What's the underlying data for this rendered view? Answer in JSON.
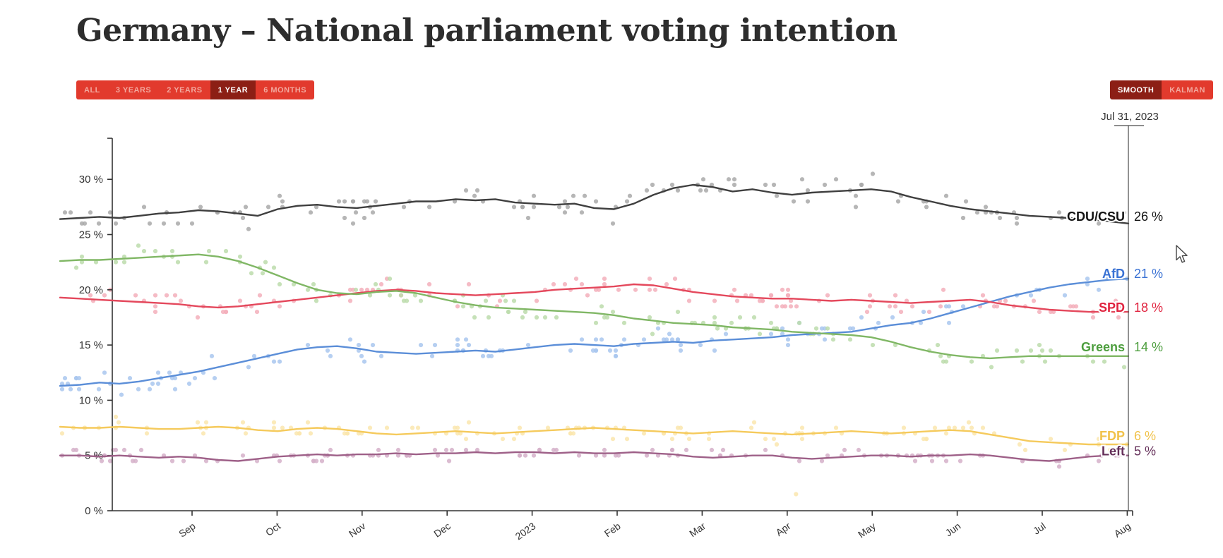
{
  "page": {
    "title": "Germany – National parliament voting intention"
  },
  "toolbar": {
    "range_buttons": [
      {
        "label": "ALL",
        "active": false
      },
      {
        "label": "3 YEARS",
        "active": false
      },
      {
        "label": "2 YEARS",
        "active": false
      },
      {
        "label": "1 YEAR",
        "active": true
      },
      {
        "label": "6 MONTHS",
        "active": false
      }
    ],
    "mode_buttons": [
      {
        "label": "SMOOTH",
        "active": true
      },
      {
        "label": "KALMAN",
        "active": false
      }
    ],
    "colors": {
      "button_bg": "#e23a2d",
      "button_bg_active": "#8c1f15",
      "label": "#f2a89e",
      "label_active": "#ffffff"
    }
  },
  "chart_data": {
    "type": "line",
    "title": "Germany – National parliament voting intention",
    "cursor_date_label": "Jul 31, 2023",
    "x_start": "mid-Jul 2022",
    "x_end": "Jul 31, 2023",
    "x_resolution": "weekly",
    "xtick_labels": [
      "Sep",
      "Oct",
      "Nov",
      "Dec",
      "2023",
      "Feb",
      "Mar",
      "Apr",
      "May",
      "Jun",
      "Jul",
      "Aug"
    ],
    "yticks": [
      0,
      5,
      10,
      15,
      20,
      25,
      30
    ],
    "ytick_labels": [
      "0 %",
      "5 %",
      "10 %",
      "15 %",
      "20 %",
      "25 %",
      "30 %"
    ],
    "ylim": [
      0,
      33.5
    ],
    "grid": false,
    "legend_position": "right-end-labels",
    "axis_color": "#333333",
    "series": [
      {
        "name": "CDU/CSU",
        "end_value": "26 %",
        "final": 26,
        "line_color": "#3f3f3f",
        "dot_color": "#a9a9a9",
        "label_color": "#141414",
        "label_dy": -10,
        "jitter": 1.5,
        "values": [
          26.4,
          26.5,
          26.6,
          26.5,
          26.7,
          26.9,
          27.0,
          27.2,
          27.1,
          26.9,
          26.7,
          27.3,
          27.6,
          27.7,
          27.5,
          27.4,
          27.6,
          27.8,
          28.0,
          28.0,
          28.2,
          28.1,
          28.2,
          27.9,
          27.8,
          27.7,
          27.8,
          27.4,
          27.3,
          27.8,
          28.6,
          29.2,
          29.5,
          29.3,
          28.9,
          29.1,
          28.8,
          28.6,
          28.8,
          28.9,
          29.0,
          29.1,
          28.9,
          28.4,
          28.0,
          27.6,
          27.3,
          27.1,
          26.9,
          26.7,
          26.6,
          26.5,
          26.4,
          26.2,
          26.0
        ]
      },
      {
        "name": "AfD",
        "end_value": "21 %",
        "final": 21,
        "line_color": "#5b8ed8",
        "dot_color": "#a9c7ef",
        "label_color": "#3a72d4",
        "label_dy": -7,
        "jitter": 1.3,
        "values": [
          11.3,
          11.4,
          11.6,
          11.5,
          11.7,
          12.0,
          12.3,
          12.6,
          13.0,
          13.4,
          13.8,
          14.2,
          14.6,
          14.8,
          14.9,
          14.7,
          14.4,
          14.3,
          14.2,
          14.3,
          14.4,
          14.5,
          14.4,
          14.6,
          14.8,
          15.0,
          15.1,
          15.0,
          14.9,
          15.1,
          15.2,
          15.3,
          15.2,
          15.4,
          15.5,
          15.6,
          15.7,
          15.9,
          16.0,
          16.1,
          16.2,
          16.5,
          16.8,
          17.0,
          17.4,
          17.9,
          18.4,
          18.9,
          19.4,
          19.8,
          20.2,
          20.5,
          20.7,
          20.9,
          21.0
        ]
      },
      {
        "name": "SPD",
        "end_value": "18 %",
        "final": 18,
        "line_color": "#e4485c",
        "dot_color": "#f3afbb",
        "label_color": "#e0233f",
        "label_dy": -6,
        "jitter": 1.2,
        "values": [
          19.3,
          19.2,
          19.1,
          19.0,
          18.9,
          18.8,
          18.7,
          18.5,
          18.4,
          18.5,
          18.7,
          18.9,
          19.1,
          19.3,
          19.5,
          19.7,
          19.9,
          20.0,
          19.9,
          19.7,
          19.6,
          19.5,
          19.6,
          19.7,
          19.8,
          20.0,
          20.1,
          20.2,
          20.3,
          20.5,
          20.4,
          20.1,
          19.8,
          19.6,
          19.4,
          19.3,
          19.2,
          19.2,
          19.1,
          19.0,
          19.1,
          19.0,
          18.9,
          18.8,
          18.9,
          19.0,
          19.1,
          18.9,
          18.6,
          18.4,
          18.2,
          18.1,
          18.0,
          18.0,
          18.0
        ]
      },
      {
        "name": "Greens",
        "end_value": "14 %",
        "final": 14,
        "line_color": "#80b765",
        "dot_color": "#bcdcab",
        "label_color": "#4d9e3e",
        "label_dy": -13,
        "jitter": 1.3,
        "values": [
          22.6,
          22.7,
          22.7,
          22.8,
          22.9,
          23.0,
          23.1,
          23.2,
          23.0,
          22.6,
          22.0,
          21.3,
          20.6,
          20.0,
          19.7,
          19.6,
          19.8,
          19.9,
          19.7,
          19.3,
          18.9,
          18.6,
          18.4,
          18.3,
          18.2,
          18.1,
          18.0,
          17.9,
          17.7,
          17.4,
          17.2,
          17.0,
          16.9,
          16.8,
          16.6,
          16.5,
          16.4,
          16.2,
          16.1,
          16.0,
          15.9,
          15.7,
          15.3,
          14.8,
          14.4,
          14.1,
          13.9,
          13.8,
          13.9,
          14.0,
          14.0,
          14.0,
          14.0,
          14.0,
          14.0
        ]
      },
      {
        "name": "FDP",
        "end_value": "6 %",
        "final": 6,
        "line_color": "#f5ca5c",
        "dot_color": "#fae6ae",
        "label_color": "#f1c24a",
        "label_dy": -12,
        "jitter": 1.0,
        "values": [
          7.6,
          7.5,
          7.5,
          7.6,
          7.5,
          7.4,
          7.4,
          7.5,
          7.6,
          7.5,
          7.3,
          7.2,
          7.4,
          7.5,
          7.4,
          7.2,
          7.0,
          6.9,
          7.0,
          7.1,
          7.2,
          7.1,
          7.0,
          7.1,
          7.2,
          7.3,
          7.4,
          7.5,
          7.4,
          7.3,
          7.2,
          7.1,
          7.0,
          7.1,
          7.2,
          7.1,
          7.0,
          6.9,
          7.0,
          7.1,
          7.2,
          7.1,
          7.0,
          7.1,
          7.2,
          7.3,
          7.2,
          6.9,
          6.6,
          6.3,
          6.2,
          6.1,
          6.0,
          6.0,
          6.0
        ]
      },
      {
        "name": "Left",
        "end_value": "5 %",
        "final": 5,
        "line_color": "#9e6088",
        "dot_color": "#d5b0c9",
        "label_color": "#65305a",
        "label_dy": -6,
        "jitter": 0.65,
        "values": [
          5.0,
          5.0,
          4.9,
          5.0,
          4.9,
          4.8,
          4.9,
          4.8,
          4.6,
          4.5,
          4.7,
          4.9,
          5.0,
          5.1,
          5.0,
          5.1,
          5.1,
          5.2,
          5.1,
          5.2,
          5.2,
          5.3,
          5.2,
          5.3,
          5.3,
          5.2,
          5.3,
          5.2,
          5.2,
          5.3,
          5.2,
          5.1,
          4.9,
          4.8,
          4.9,
          5.0,
          5.0,
          4.8,
          4.7,
          4.8,
          4.9,
          5.0,
          5.0,
          4.9,
          5.0,
          5.0,
          5.1,
          5.0,
          4.8,
          4.6,
          4.5,
          4.7,
          4.9,
          5.0,
          5.0
        ]
      }
    ],
    "outlier_points": [
      {
        "series": "FDP",
        "week": 37.2,
        "value": 1.5
      }
    ],
    "scatter": {
      "dots_per_series": 125,
      "round_to": 0.5,
      "seed": 42,
      "dot_radius": 3.1,
      "dot_opacity": 0.85
    }
  }
}
